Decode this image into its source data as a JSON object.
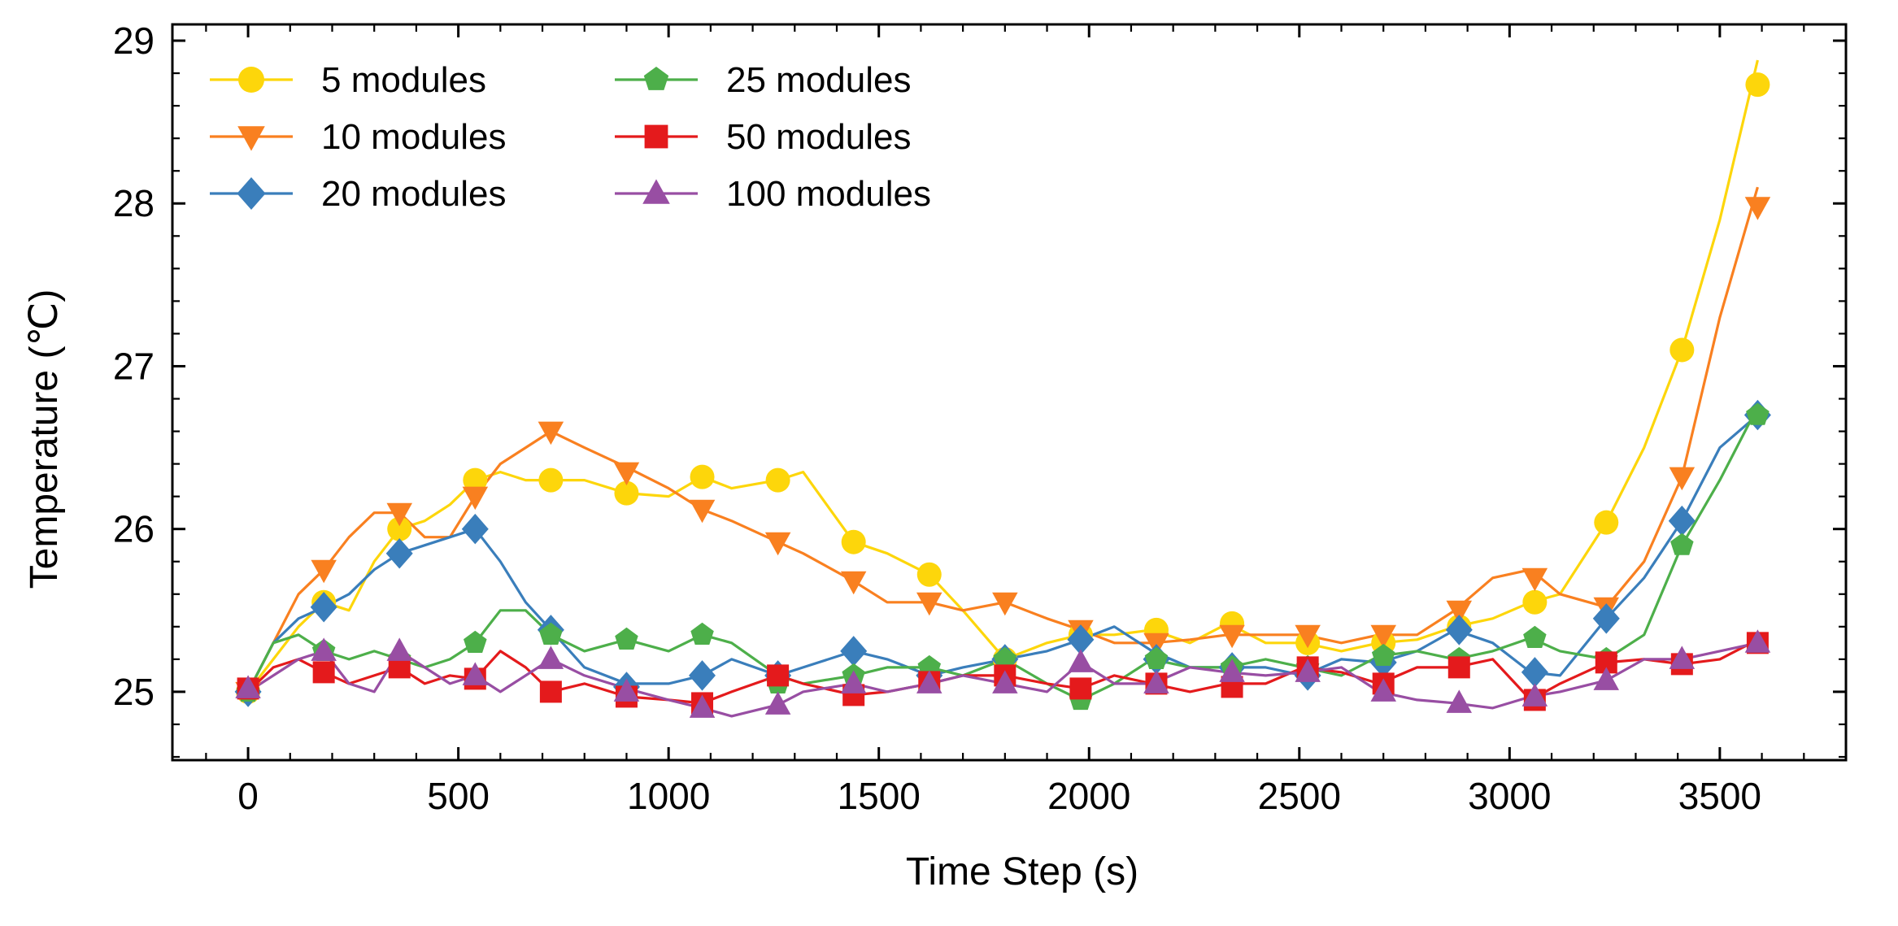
{
  "chart_data": {
    "type": "line",
    "title": "",
    "xlabel": "Time Step (s)",
    "ylabel": "Temperature (℃)",
    "xlim": [
      -180,
      3800
    ],
    "ylim": [
      24.58,
      29.1
    ],
    "xticks": [
      0,
      500,
      1000,
      1500,
      2000,
      2500,
      3000,
      3500
    ],
    "xtick_labels": [
      "0",
      "500",
      "1000",
      "1500",
      "2000",
      "2500",
      "3000",
      "3500"
    ],
    "yticks": [
      25,
      26,
      27,
      28,
      29
    ],
    "ytick_labels": [
      "25",
      "26",
      "27",
      "28",
      "29"
    ],
    "grid": false,
    "legend_position": "top-left",
    "legend_columns": 2,
    "series": [
      {
        "name": "5 modules",
        "color": "#FDD60B",
        "marker": "circle",
        "x": [
          0,
          60,
          120,
          180,
          240,
          300,
          360,
          420,
          480,
          540,
          600,
          660,
          720,
          800,
          900,
          1000,
          1080,
          1150,
          1260,
          1320,
          1440,
          1520,
          1620,
          1700,
          1800,
          1900,
          1980,
          2060,
          2150,
          2240,
          2330,
          2420,
          2510,
          2600,
          2690,
          2780,
          2870,
          2960,
          3050,
          3120,
          3230,
          3320,
          3410,
          3500,
          3590
        ],
        "y": [
          25.0,
          25.2,
          25.4,
          25.55,
          25.5,
          25.8,
          26.0,
          26.05,
          26.15,
          26.3,
          26.35,
          26.3,
          26.3,
          26.3,
          26.22,
          26.2,
          26.32,
          26.25,
          26.3,
          26.35,
          25.92,
          25.85,
          25.72,
          25.5,
          25.2,
          25.3,
          25.35,
          25.35,
          25.38,
          25.3,
          25.42,
          25.3,
          25.3,
          25.25,
          25.3,
          25.32,
          25.4,
          25.45,
          25.55,
          25.6,
          26.04,
          26.5,
          27.1,
          27.9,
          28.88
        ],
        "marker_x": [
          0,
          180,
          360,
          540,
          720,
          900,
          1080,
          1260,
          1440,
          1620,
          1800,
          1980,
          2160,
          2340,
          2520,
          2700,
          2880,
          3060,
          3230,
          3410,
          3590
        ],
        "marker_y": [
          25.0,
          25.55,
          26.0,
          26.3,
          26.3,
          26.22,
          26.32,
          26.3,
          25.92,
          25.72,
          25.2,
          25.35,
          25.38,
          25.42,
          25.3,
          25.3,
          25.4,
          25.55,
          26.04,
          27.1,
          28.73
        ]
      },
      {
        "name": "10 modules",
        "color": "#F98020",
        "marker": "triangle-down",
        "x": [
          0,
          60,
          120,
          180,
          240,
          300,
          360,
          420,
          480,
          540,
          600,
          660,
          720,
          800,
          900,
          1000,
          1080,
          1150,
          1260,
          1320,
          1440,
          1520,
          1620,
          1700,
          1800,
          1900,
          1980,
          2060,
          2150,
          2240,
          2330,
          2420,
          2510,
          2600,
          2690,
          2780,
          2870,
          2960,
          3050,
          3120,
          3230,
          3320,
          3410,
          3500,
          3590
        ],
        "y": [
          25.0,
          25.3,
          25.6,
          25.75,
          25.95,
          26.1,
          26.1,
          25.95,
          25.95,
          26.2,
          26.4,
          26.5,
          26.6,
          26.5,
          26.38,
          26.25,
          26.12,
          26.05,
          25.92,
          25.85,
          25.68,
          25.55,
          25.55,
          25.5,
          25.55,
          25.45,
          25.38,
          25.3,
          25.3,
          25.32,
          25.35,
          25.35,
          25.35,
          25.3,
          25.35,
          25.35,
          25.5,
          25.7,
          25.75,
          25.6,
          25.52,
          25.8,
          26.32,
          27.3,
          28.1
        ],
        "marker_x": [
          0,
          180,
          360,
          540,
          720,
          900,
          1080,
          1260,
          1440,
          1620,
          1800,
          1980,
          2160,
          2340,
          2520,
          2700,
          2880,
          3060,
          3230,
          3410,
          3590
        ],
        "marker_y": [
          25.0,
          25.75,
          26.1,
          26.2,
          26.6,
          26.35,
          26.12,
          25.92,
          25.68,
          25.55,
          25.55,
          25.38,
          25.3,
          25.35,
          25.35,
          25.35,
          25.5,
          25.7,
          25.52,
          26.32,
          27.98
        ]
      },
      {
        "name": "20 modules",
        "color": "#3A7EBB",
        "marker": "diamond",
        "x": [
          0,
          60,
          120,
          180,
          240,
          300,
          360,
          420,
          480,
          540,
          600,
          660,
          720,
          800,
          900,
          1000,
          1080,
          1150,
          1260,
          1320,
          1440,
          1520,
          1620,
          1700,
          1800,
          1900,
          1980,
          2060,
          2150,
          2240,
          2330,
          2420,
          2510,
          2600,
          2690,
          2780,
          2870,
          2960,
          3050,
          3120,
          3230,
          3320,
          3410,
          3500,
          3590
        ],
        "y": [
          25.0,
          25.3,
          25.45,
          25.52,
          25.6,
          25.75,
          25.85,
          25.9,
          25.95,
          26.0,
          25.8,
          25.55,
          25.38,
          25.15,
          25.05,
          25.05,
          25.1,
          25.2,
          25.1,
          25.15,
          25.25,
          25.2,
          25.1,
          25.15,
          25.2,
          25.25,
          25.32,
          25.4,
          25.25,
          25.15,
          25.15,
          25.15,
          25.1,
          25.2,
          25.18,
          25.25,
          25.38,
          25.3,
          25.12,
          25.1,
          25.45,
          25.7,
          26.05,
          26.5,
          26.7
        ],
        "marker_x": [
          0,
          180,
          360,
          540,
          720,
          900,
          1080,
          1260,
          1440,
          1620,
          1800,
          1980,
          2160,
          2340,
          2520,
          2700,
          2880,
          3060,
          3230,
          3410,
          3590
        ],
        "marker_y": [
          25.0,
          25.52,
          25.85,
          26.0,
          25.38,
          25.03,
          25.1,
          25.1,
          25.25,
          25.1,
          25.2,
          25.32,
          25.2,
          25.15,
          25.1,
          25.18,
          25.38,
          25.12,
          25.45,
          26.05,
          26.7
        ]
      },
      {
        "name": "25 modules",
        "color": "#4DAF4A",
        "marker": "pentagon",
        "x": [
          0,
          60,
          120,
          180,
          240,
          300,
          360,
          420,
          480,
          540,
          600,
          660,
          720,
          800,
          900,
          1000,
          1080,
          1150,
          1260,
          1320,
          1440,
          1520,
          1620,
          1700,
          1800,
          1900,
          1980,
          2060,
          2150,
          2240,
          2330,
          2420,
          2510,
          2600,
          2690,
          2780,
          2870,
          2960,
          3050,
          3120,
          3230,
          3320,
          3410,
          3500,
          3590
        ],
        "y": [
          25.0,
          25.3,
          25.35,
          25.25,
          25.2,
          25.25,
          25.2,
          25.15,
          25.2,
          25.3,
          25.5,
          25.5,
          25.35,
          25.25,
          25.32,
          25.25,
          25.35,
          25.3,
          25.1,
          25.05,
          25.1,
          25.15,
          25.15,
          25.1,
          25.2,
          25.05,
          24.95,
          25.05,
          25.2,
          25.15,
          25.15,
          25.2,
          25.15,
          25.1,
          25.22,
          25.25,
          25.2,
          25.25,
          25.33,
          25.25,
          25.2,
          25.35,
          25.9,
          26.3,
          26.75
        ],
        "marker_x": [
          0,
          180,
          360,
          540,
          720,
          900,
          1080,
          1260,
          1440,
          1620,
          1800,
          1980,
          2160,
          2340,
          2520,
          2700,
          2880,
          3060,
          3230,
          3410,
          3590
        ],
        "marker_y": [
          25.0,
          25.25,
          25.2,
          25.3,
          25.35,
          25.32,
          25.35,
          25.05,
          25.1,
          25.15,
          25.2,
          24.95,
          25.2,
          25.15,
          25.15,
          25.22,
          25.2,
          25.33,
          25.2,
          25.9,
          26.7
        ]
      },
      {
        "name": "50 modules",
        "color": "#E41A1C",
        "marker": "square",
        "x": [
          0,
          60,
          120,
          180,
          240,
          300,
          360,
          420,
          480,
          540,
          600,
          660,
          720,
          800,
          900,
          1000,
          1080,
          1150,
          1260,
          1320,
          1440,
          1520,
          1620,
          1700,
          1800,
          1900,
          1980,
          2060,
          2150,
          2240,
          2330,
          2420,
          2510,
          2600,
          2690,
          2780,
          2870,
          2960,
          3050,
          3120,
          3230,
          3320,
          3410,
          3500,
          3590
        ],
        "y": [
          25.0,
          25.15,
          25.2,
          25.12,
          25.05,
          25.1,
          25.15,
          25.05,
          25.1,
          25.08,
          25.25,
          25.15,
          25.0,
          25.05,
          24.97,
          24.95,
          24.93,
          25.0,
          25.1,
          25.05,
          24.98,
          25.0,
          25.05,
          25.1,
          25.1,
          25.05,
          25.02,
          25.1,
          25.05,
          25.0,
          25.05,
          25.05,
          25.15,
          25.12,
          25.05,
          25.15,
          25.15,
          25.2,
          24.95,
          25.05,
          25.18,
          25.2,
          25.17,
          25.2,
          25.32
        ],
        "marker_x": [
          0,
          180,
          360,
          540,
          720,
          900,
          1080,
          1260,
          1440,
          1620,
          1800,
          1980,
          2160,
          2340,
          2520,
          2700,
          2880,
          3060,
          3230,
          3410,
          3590
        ],
        "marker_y": [
          25.02,
          25.12,
          25.15,
          25.08,
          25.0,
          24.97,
          24.93,
          25.1,
          24.98,
          25.06,
          25.1,
          25.02,
          25.05,
          25.03,
          25.15,
          25.05,
          25.15,
          24.95,
          25.18,
          25.17,
          25.3
        ]
      },
      {
        "name": "100 modules",
        "color": "#984EA3",
        "marker": "triangle-up",
        "x": [
          0,
          60,
          120,
          180,
          240,
          300,
          360,
          420,
          480,
          540,
          600,
          660,
          720,
          800,
          900,
          1000,
          1080,
          1150,
          1260,
          1320,
          1440,
          1520,
          1620,
          1700,
          1800,
          1900,
          1980,
          2060,
          2150,
          2240,
          2330,
          2420,
          2510,
          2600,
          2690,
          2780,
          2870,
          2960,
          3050,
          3120,
          3230,
          3320,
          3410,
          3500,
          3590
        ],
        "y": [
          25.0,
          25.1,
          25.2,
          25.25,
          25.05,
          25.0,
          25.25,
          25.15,
          25.05,
          25.1,
          25.0,
          25.1,
          25.2,
          25.1,
          25.02,
          24.95,
          24.9,
          24.85,
          24.92,
          25.0,
          25.05,
          25.0,
          25.05,
          25.1,
          25.05,
          25.0,
          25.18,
          25.05,
          25.05,
          25.15,
          25.12,
          25.1,
          25.12,
          25.15,
          25.0,
          24.95,
          24.93,
          24.9,
          24.97,
          25.0,
          25.07,
          25.2,
          25.2,
          25.25,
          25.3
        ],
        "marker_x": [
          0,
          180,
          360,
          540,
          720,
          900,
          1080,
          1260,
          1440,
          1620,
          1800,
          1980,
          2160,
          2340,
          2520,
          2700,
          2880,
          3060,
          3230,
          3410,
          3590
        ],
        "marker_y": [
          25.02,
          25.25,
          25.25,
          25.1,
          25.2,
          25.0,
          24.9,
          24.92,
          25.05,
          25.05,
          25.05,
          25.18,
          25.05,
          25.12,
          25.12,
          25.0,
          24.93,
          24.97,
          25.07,
          25.2,
          25.3
        ]
      }
    ]
  }
}
